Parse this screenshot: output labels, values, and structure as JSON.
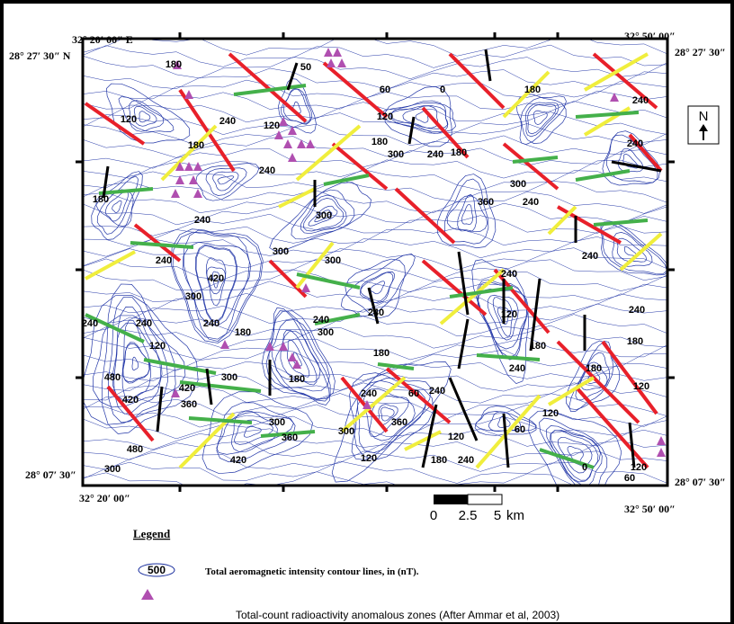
{
  "header": {
    "top_left_lon": "32° 20′ 00″ E",
    "top_left_lat": "28° 27′ 30″ N",
    "top_right_lon": "32° 50′ 00″",
    "top_right_lat": "28° 27′ 30″",
    "bottom_left_lat": "28° 07′ 30″",
    "bottom_left_lon": "32° 20′ 00″",
    "bottom_right_lat": "28° 07′ 30″",
    "bottom_right_lon": "32° 50′ 00″"
  },
  "north": "N",
  "scale": {
    "labels": [
      "0",
      "2.5",
      "5"
    ],
    "unit": "km"
  },
  "contour_labels": [
    "180",
    "120",
    "180",
    "240",
    "180",
    "240",
    "240",
    "300",
    "300",
    "420",
    "240",
    "240",
    "180",
    "240",
    "120",
    "480",
    "420",
    "360",
    "300",
    "420",
    "180",
    "300",
    "360",
    "420",
    "480",
    "300",
    "60",
    "0",
    "180",
    "240",
    "240",
    "120",
    "180",
    "300",
    "240",
    "180",
    "300",
    "360",
    "240",
    "240",
    "240",
    "240",
    "120",
    "180",
    "180",
    "180",
    "240",
    "120",
    "240",
    "180",
    "240",
    "60",
    "360",
    "300",
    "120",
    "180",
    "240",
    "120",
    "60",
    "120",
    "0",
    "120",
    "60",
    "240",
    "300",
    "300",
    "240",
    "240",
    "300",
    "120",
    "50"
  ],
  "legend": {
    "title": "Legend",
    "contour_sample": "500",
    "contour_text": "Total aeromagnetic intensity contour lines, in (nT).",
    "triangle_text": "Total-count radioactivity anomalous zones (After Ammar et al, 2003)"
  }
}
